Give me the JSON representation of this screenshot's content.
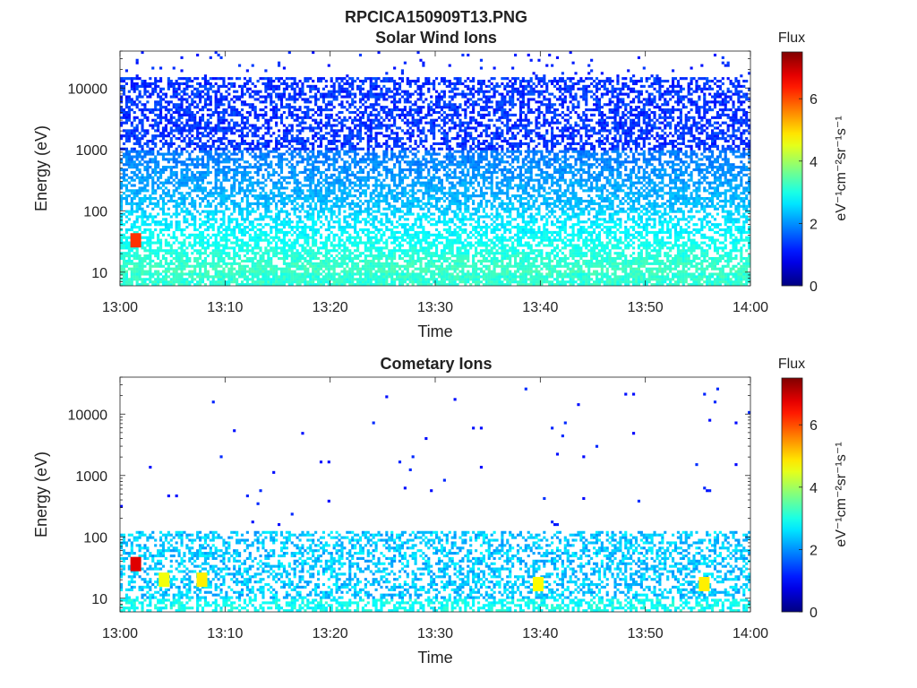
{
  "figure": {
    "title": "RPCICA150909T13.PNG"
  },
  "colors": {
    "colormap": "jet",
    "background": "#ffffff",
    "axes": "#222222"
  },
  "chart_data": [
    {
      "type": "heatmap",
      "title": "Solar Wind Ions",
      "xlabel": "Time",
      "ylabel": "Energy (eV)",
      "x_ticks": [
        "13:00",
        "13:10",
        "13:20",
        "13:30",
        "13:40",
        "13:50",
        "14:00"
      ],
      "x_range": [
        "13:00",
        "14:00"
      ],
      "y_scale": "log",
      "y_ticks": [
        10,
        100,
        1000,
        10000
      ],
      "y_tick_labels": [
        "10",
        "100",
        "1000",
        "10000"
      ],
      "y_range": [
        6,
        40000
      ],
      "colorbar": {
        "title": "Flux",
        "label": "eV⁻¹cm⁻²sr⁻¹s⁻¹",
        "range": [
          0,
          7.5
        ],
        "ticks": [
          0,
          2,
          4,
          6
        ],
        "tick_labels": [
          "0",
          "2",
          "4",
          "6"
        ]
      },
      "description_of_content": "dense scatter of flux from ~10 eV up to ~20000 eV; blue (~1-2) at high energies, cyan/green (~2.5-3.5) below 100 eV",
      "hotspots": [
        {
          "time": "13:01.5",
          "energy_eV": 33,
          "flux": 6.2
        }
      ],
      "grid": false
    },
    {
      "type": "heatmap",
      "title": "Cometary Ions",
      "xlabel": "Time",
      "ylabel": "Energy (eV)",
      "x_ticks": [
        "13:00",
        "13:10",
        "13:20",
        "13:30",
        "13:40",
        "13:50",
        "14:00"
      ],
      "x_range": [
        "13:00",
        "14:00"
      ],
      "y_scale": "log",
      "y_ticks": [
        10,
        100,
        1000,
        10000
      ],
      "y_tick_labels": [
        "10",
        "100",
        "1000",
        "10000"
      ],
      "y_range": [
        6,
        40000
      ],
      "colorbar": {
        "title": "Flux",
        "label": "eV⁻¹cm⁻²sr⁻¹s⁻¹",
        "range": [
          0,
          7.5
        ],
        "ticks": [
          0,
          2,
          4,
          6
        ],
        "tick_labels": [
          "0",
          "2",
          "4",
          "6"
        ]
      },
      "description_of_content": "mostly below 130 eV with cyan/green flux; sparse isolated blue points up to ~30000 eV",
      "hotspots": [
        {
          "time": "13:01.5",
          "energy_eV": 36,
          "flux": 6.8
        },
        {
          "time": "13:04.2",
          "energy_eV": 20,
          "flux": 4.6
        },
        {
          "time": "13:07.8",
          "energy_eV": 20,
          "flux": 4.8
        },
        {
          "time": "13:39.8",
          "energy_eV": 17,
          "flux": 4.7
        },
        {
          "time": "13:55.6",
          "energy_eV": 17,
          "flux": 4.8
        }
      ],
      "grid": false
    }
  ]
}
